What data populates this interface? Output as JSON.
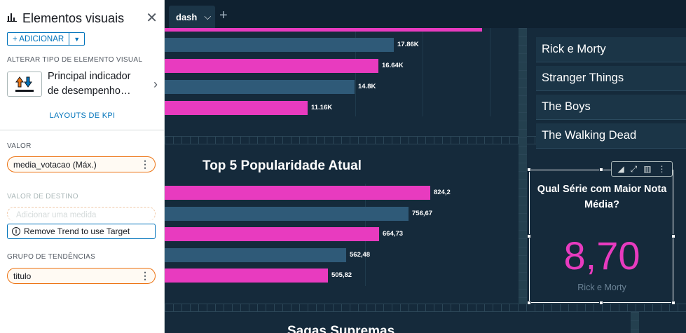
{
  "panel": {
    "title": "Elementos visuais",
    "add_label": "+ ADICIONAR",
    "change_type_label": "ALTERAR TIPO DE ELEMENTO VISUAL",
    "visual_type_line1": "Principal indicador",
    "visual_type_line2": "de desempenho…",
    "kpi_layouts_label": "LAYOUTS DE KPI",
    "value_label": "VALOR",
    "value_field": "media_votacao (Máx.)",
    "target_label": "VALOR DE DESTINO",
    "target_placeholder": "Adicionar uma medida",
    "trend_notice": "Remove Trend to use Target",
    "trend_group_label": "GRUPO DE TENDÊNCIAS",
    "trend_field": "titulo"
  },
  "dashboard": {
    "tab_label": "dash",
    "chart1": {
      "bar_labels": [
        "17.86K",
        "16.64K",
        "14.8K",
        "11.16K"
      ]
    },
    "chart2": {
      "title": "Top 5 Popularidade Atual",
      "bar_labels": [
        "824,2",
        "756,67",
        "664,73",
        "562,48",
        "505,82"
      ]
    },
    "bottom_title": "Sagas Supremas",
    "series_list": [
      "Rick e Morty",
      "Stranger Things",
      "The Boys",
      "The Walking Dead"
    ],
    "kpi": {
      "title": "Qual Série com Maior Nota Média?",
      "value": "8,70",
      "subtitle": "Rick e Morty"
    },
    "colors": {
      "pink": "#e83bbf",
      "blue": "#2f5a78",
      "background": "#152a3b"
    }
  },
  "chart_data": [
    {
      "type": "bar",
      "categories": [
        "",
        "",
        "",
        ""
      ],
      "values": [
        17860,
        16640,
        14800,
        11160
      ],
      "title": "",
      "xlabel": "",
      "ylabel": ""
    },
    {
      "type": "bar",
      "categories": [
        "",
        "",
        "",
        "",
        ""
      ],
      "values": [
        824.2,
        756.67,
        664.73,
        562.48,
        505.82
      ],
      "title": "Top 5 Popularidade Atual",
      "xlabel": "",
      "ylabel": ""
    }
  ]
}
